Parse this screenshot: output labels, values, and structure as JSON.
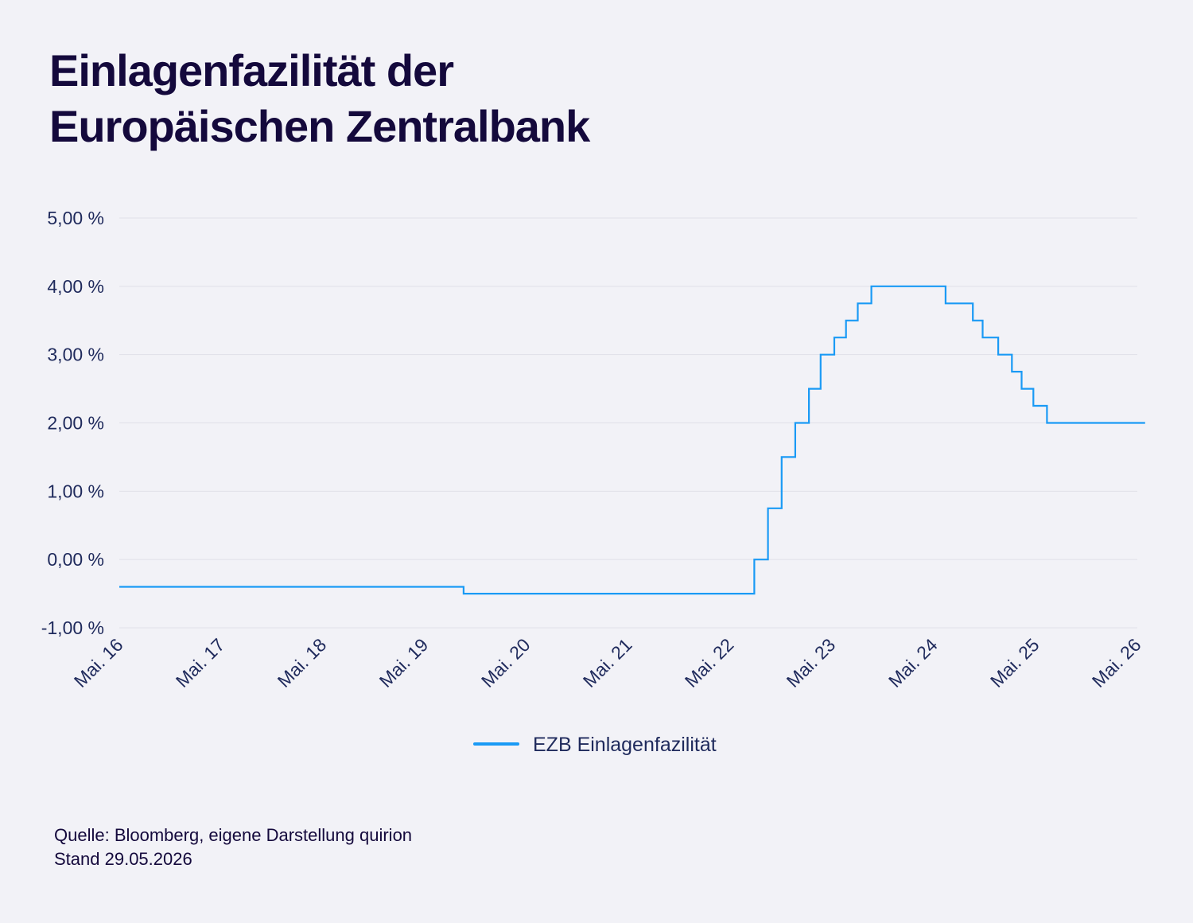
{
  "title": {
    "line1": "Einlagenfazilität der",
    "line2": "Europäischen Zentralbank"
  },
  "colors": {
    "background": "#f2f2f7",
    "text": "#14093c",
    "axis_text": "#1f2a5c",
    "grid": "#e0e0e8",
    "series": "#1a9af5"
  },
  "chart_data": {
    "type": "line",
    "title": "Einlagenfazilität der Europäischen Zentralbank",
    "xlabel": "",
    "ylabel": "",
    "ylim": [
      -1,
      5
    ],
    "xlim": [
      "2016-05-01",
      "2026-05-01"
    ],
    "grid": true,
    "legend_position": "bottom-center",
    "y_ticks": [
      {
        "value": 5,
        "label": "5,00 %"
      },
      {
        "value": 4,
        "label": "4,00 %"
      },
      {
        "value": 3,
        "label": "3,00 %"
      },
      {
        "value": 2,
        "label": "2,00 %"
      },
      {
        "value": 1,
        "label": "1,00 %"
      },
      {
        "value": 0,
        "label": "0,00 %"
      },
      {
        "value": -1,
        "label": "-1,00 %"
      }
    ],
    "x_ticks": [
      {
        "date": "2016-05-01",
        "label": "Mai. 16"
      },
      {
        "date": "2017-05-01",
        "label": "Mai. 17"
      },
      {
        "date": "2018-05-01",
        "label": "Mai. 18"
      },
      {
        "date": "2019-05-01",
        "label": "Mai. 19"
      },
      {
        "date": "2020-05-01",
        "label": "Mai. 20"
      },
      {
        "date": "2021-05-01",
        "label": "Mai. 21"
      },
      {
        "date": "2022-05-01",
        "label": "Mai. 22"
      },
      {
        "date": "2023-05-01",
        "label": "Mai. 23"
      },
      {
        "date": "2024-05-01",
        "label": "Mai. 24"
      },
      {
        "date": "2025-05-01",
        "label": "Mai. 25"
      },
      {
        "date": "2026-05-01",
        "label": "Mai. 26"
      }
    ],
    "series": [
      {
        "name": "EZB Einlagenfazilität",
        "step": true,
        "points": [
          {
            "x": "2016-05-01",
            "y": -0.4
          },
          {
            "x": "2019-09-18",
            "y": -0.5
          },
          {
            "x": "2022-07-27",
            "y": 0.0
          },
          {
            "x": "2022-09-14",
            "y": 0.75
          },
          {
            "x": "2022-11-02",
            "y": 1.5
          },
          {
            "x": "2022-12-21",
            "y": 2.0
          },
          {
            "x": "2023-02-08",
            "y": 2.5
          },
          {
            "x": "2023-03-22",
            "y": 3.0
          },
          {
            "x": "2023-05-10",
            "y": 3.25
          },
          {
            "x": "2023-06-21",
            "y": 3.5
          },
          {
            "x": "2023-08-02",
            "y": 3.75
          },
          {
            "x": "2023-09-20",
            "y": 4.0
          },
          {
            "x": "2024-06-12",
            "y": 3.75
          },
          {
            "x": "2024-09-18",
            "y": 3.5
          },
          {
            "x": "2024-10-23",
            "y": 3.25
          },
          {
            "x": "2024-12-18",
            "y": 3.0
          },
          {
            "x": "2025-02-05",
            "y": 2.75
          },
          {
            "x": "2025-03-12",
            "y": 2.5
          },
          {
            "x": "2025-04-23",
            "y": 2.25
          },
          {
            "x": "2025-06-11",
            "y": 2.0
          },
          {
            "x": "2026-05-29",
            "y": 2.0
          }
        ]
      }
    ]
  },
  "source": {
    "line1": "Quelle: Bloomberg, eigene Darstellung quirion",
    "line2": "Stand 29.05.2026"
  }
}
